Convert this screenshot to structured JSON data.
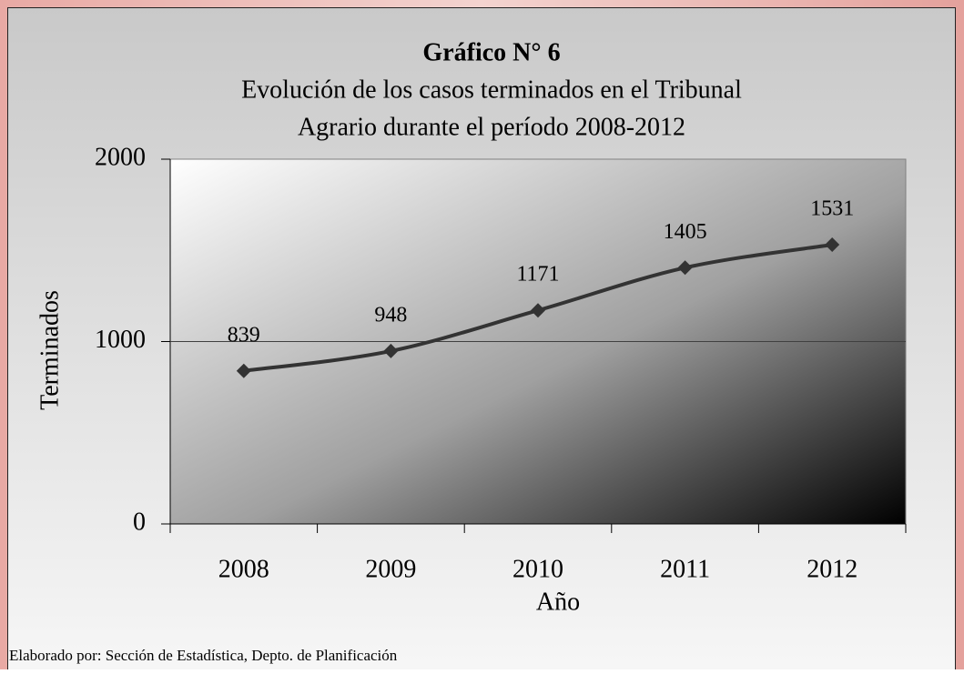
{
  "chart_data": {
    "type": "line",
    "title": "Gráfico N° 6",
    "subtitle": [
      "Evolución de los casos terminados en el Tribunal",
      "Agrario durante el período 2008-2012"
    ],
    "categories": [
      "2008",
      "2009",
      "2010",
      "2011",
      "2012"
    ],
    "series": [
      {
        "name": "Terminados",
        "color": "#333333",
        "values": [
          839,
          948,
          1171,
          1405,
          1531
        ]
      }
    ],
    "ylim": [
      0,
      2000
    ],
    "yticks": [
      0,
      1000,
      2000
    ],
    "grid": true,
    "y_label": "Terminados",
    "x_label": "Año",
    "footer": "Elaborado por: Sección de Estadística, Depto. de Planificación"
  }
}
